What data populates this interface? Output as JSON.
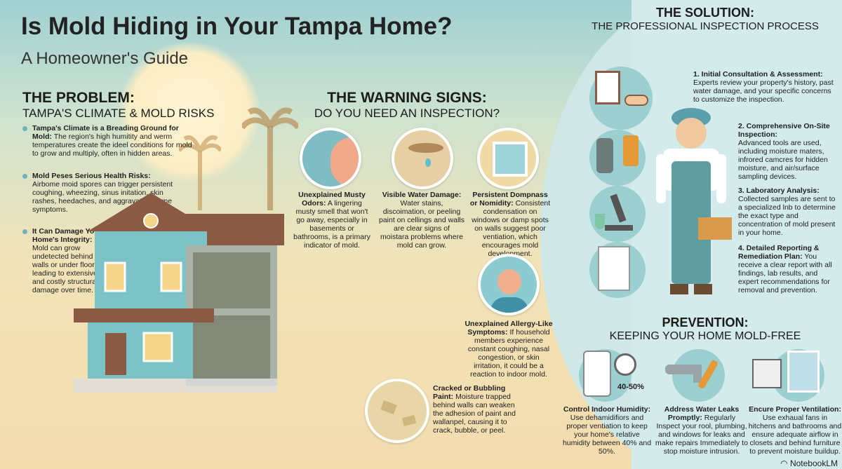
{
  "title": "Is Mold Hiding in Your Tampa Home?",
  "subtitle": "A Homeowner's Guide",
  "problem": {
    "heading": "THE PROBLEM:",
    "subheading": "TAMPA'S CLIMATE & MOLD RISKS",
    "items": [
      {
        "title": "Tampa's Climate is a Breading Ground for Mold:",
        "text": "The region's high humitity and werm temperatures create the ideel conditions for mold to grow and multiply, often in hidden areas."
      },
      {
        "title": "Mold Peses Serious Health Risks:",
        "text": "Airbome moid spores can trigger persistent coughing, wheezing, sinus initation, skin rashes, heedaches, and aggravate axthme symptoms."
      },
      {
        "title": "It Can Damage Your Home's Integrity:",
        "text": "Mold can grow undetected behind walls or under floors, leading to extensive and costly structural damage over time."
      }
    ]
  },
  "warning": {
    "heading": "THE WARNING SIGNS:",
    "subheading": "DO YOU NEED AN INSPECTION?",
    "items": [
      {
        "icon": "nose-icon",
        "title": "Unexplained Musty Odors:",
        "text": "A lingering musty smell that won't go away, especially in basements or bathrooms, is a primary indicator of mold."
      },
      {
        "icon": "water-stain-icon",
        "title": "Visible Water Damage:",
        "text": "Water stains, discoimation, or peeling paint on cellings and walls are clear signs of moistara problems where mold can grow."
      },
      {
        "icon": "condensation-window-icon",
        "title": "Persistent Dompnass or Nomidity:",
        "text": "Consistent condensation on windows or damp spots on walls suggest poor ventiation, which encourages mold development."
      },
      {
        "icon": "coughing-person-icon",
        "title": "Unexplained Allergy-Like Symptoms:",
        "text": "If household members experience constant coughing, nasal congestion, or skin irritation, it could be a reaction to indoor mold."
      },
      {
        "icon": "cracked-paint-icon",
        "title": "Cracked or Bubbling Paint:",
        "text": "Moisture trapped behind walls can weaken the adhesion of paint and wallanpel, causing it to crack, bubble, or peel."
      }
    ]
  },
  "solution": {
    "heading": "THE SOLUTION:",
    "subheading": "THE PROFESSIONAL INSPECTION PROCESS",
    "steps": [
      {
        "icon": "clipboard-handshake-icon",
        "title": "1. Initial Consultation & Assessment:",
        "text": "Experts review your property's history, past water damage, and your specific concerns to customize the inspection."
      },
      {
        "icon": "moisture-meter-icon",
        "title": "2. Comprehensive On-Site Inspection:",
        "text": "Advanced tools are used, including moisture maters, infrored camcres for hidden moisture, and air/surface sampling devices."
      },
      {
        "icon": "microscope-icon",
        "title": "3. Laboratory Analysis:",
        "text": "Collected samples are sent to a specialized lnb to determine the exact type and concentration of mold present in your home."
      },
      {
        "icon": "report-icon",
        "title": "4. Detailed Reporting & Remediation Plan:",
        "text": "You receive a clear report with all findings, lab results, and expert recommendations for removal and prevention."
      }
    ]
  },
  "prevention": {
    "heading": "PREVENTION:",
    "subheading": "KEEPING YOUR HOME MOLD-FREE",
    "gauge_label": "40-50%",
    "items": [
      {
        "icon": "dehumidifier-icon",
        "title": "Control Indoor Humidity:",
        "text": "Use dehamidifiors and proper ventiation to keep your home's relative humidity between 40% and 50%."
      },
      {
        "icon": "faucet-wrench-icon",
        "title": "Address Water Leaks Promptly:",
        "text": "Regularly Inspect your rool, plumbing, and windows for leaks and make repairs Immediately to stop moisture intrusion."
      },
      {
        "icon": "exhaust-fan-window-icon",
        "title": "Encure Proper Ventilation:",
        "text": "Use exhaual fans in hitchens and bathrooms and ensure adequate airflow in closets and behind furniture to prevent moisture buildup."
      }
    ]
  },
  "branding": {
    "name": "NotebookLM"
  },
  "colors": {
    "teal": "#6fb2ba",
    "house": "#7cc3c8",
    "roof": "#8a5a44",
    "panel": "#d3ebea"
  }
}
